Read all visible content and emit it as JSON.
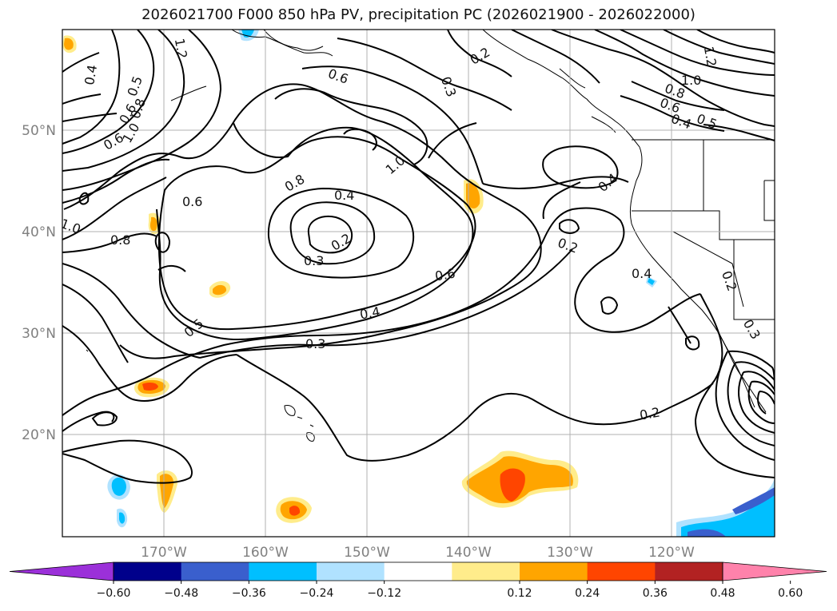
{
  "title": "2026021700 F000 850 hPa PV, precipitation PC (2026021900 - 2026022000)",
  "lat_labels": [
    "50°N",
    "40°N",
    "30°N",
    "20°N"
  ],
  "lon_labels": [
    "170°W",
    "160°W",
    "150°W",
    "140°W",
    "130°W",
    "120°W"
  ],
  "contour_labels": [
    "1.2",
    "0.4",
    "0.5",
    "0.6",
    "0.8",
    "1.0",
    "0.6",
    "0.2",
    "0.3",
    "0.6",
    "1.0",
    "0.8",
    "0.4",
    "0.2",
    "0.3",
    "0.6",
    "0.4",
    "0.3",
    "0.5",
    "0.8",
    "1.0",
    "0.6",
    "0.2",
    "0.4",
    "0.2",
    "0.4",
    "0.2",
    "0.3",
    "1.2",
    "1.0",
    "0.8",
    "0.6",
    "0.5",
    "0.4"
  ],
  "colorbar": {
    "ticks": [
      "−0.60",
      "−0.48",
      "−0.36",
      "−0.24",
      "−0.12",
      "0.12",
      "0.24",
      "0.36",
      "0.48",
      "0.60"
    ],
    "colors": [
      "#9b30d9",
      "#00008b",
      "#3a5fcd",
      "#00bfff",
      "#b0e2ff",
      "#ffffff",
      "#ffec8b",
      "#ffa500",
      "#ff4500",
      "#b22222",
      "#ff82ab"
    ]
  },
  "fill_colors": {
    "pos_low": "#ffec8b",
    "pos_mid": "#ffa500",
    "pos_high": "#ff4500",
    "neg_low": "#b0e2ff",
    "neg_mid": "#00bfff",
    "neg_high": "#3a5fcd"
  }
}
